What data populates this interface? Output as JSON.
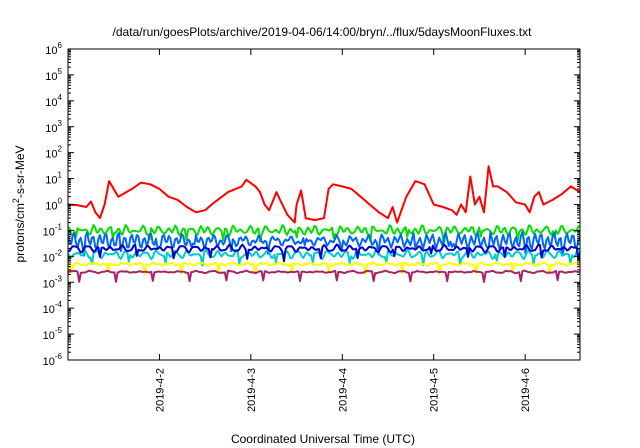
{
  "chart_data": {
    "type": "line",
    "title": "/data/run/goesPlots/archive/2019-04-06/14:00/bryn/../flux/5daysMoonFluxes.txt",
    "xlabel": "Coordinated Universal Time (UTC)",
    "ylabel": "protons/cm²-s-sr-MeV",
    "ylabel_parts": {
      "base": "protons/cm",
      "sup": "2",
      "rest": "-s-sr-MeV"
    },
    "yscale": "log",
    "ylim_exponents": [
      -6,
      6
    ],
    "y_ticks": [
      {
        "base": "10",
        "exp": "6"
      },
      {
        "base": "10",
        "exp": "5"
      },
      {
        "base": "10",
        "exp": "4"
      },
      {
        "base": "10",
        "exp": "3"
      },
      {
        "base": "10",
        "exp": "2"
      },
      {
        "base": "10",
        "exp": "1"
      },
      {
        "base": "10",
        "exp": "0"
      },
      {
        "base": "10",
        "exp": "-1"
      },
      {
        "base": "10",
        "exp": "-2"
      },
      {
        "base": "10",
        "exp": "-3"
      },
      {
        "base": "10",
        "exp": "-4"
      },
      {
        "base": "10",
        "exp": "-5"
      },
      {
        "base": "10",
        "exp": "-6"
      }
    ],
    "xlim_days": [
      0,
      5.6
    ],
    "x_ticks": [
      "2019-4-2",
      "2019-4-3",
      "2019-4-4",
      "2019-4-5",
      "2019-4-6"
    ],
    "x_tick_days": [
      1,
      2,
      3,
      4,
      5
    ],
    "grid": false,
    "series": [
      {
        "color": "#ff0000",
        "points": [
          [
            0.0,
            1.0
          ],
          [
            0.1,
            0.95
          ],
          [
            0.2,
            0.8
          ],
          [
            0.25,
            1.3
          ],
          [
            0.3,
            0.5
          ],
          [
            0.35,
            0.3
          ],
          [
            0.4,
            1.0
          ],
          [
            0.45,
            8.0
          ],
          [
            0.55,
            2.0
          ],
          [
            0.7,
            4.0
          ],
          [
            0.8,
            7.0
          ],
          [
            0.9,
            6.0
          ],
          [
            1.0,
            4.0
          ],
          [
            1.1,
            2.0
          ],
          [
            1.2,
            1.5
          ],
          [
            1.3,
            0.8
          ],
          [
            1.4,
            0.5
          ],
          [
            1.5,
            0.6
          ],
          [
            1.6,
            1.2
          ],
          [
            1.75,
            3.0
          ],
          [
            1.9,
            5.0
          ],
          [
            1.95,
            9.0
          ],
          [
            2.05,
            5.0
          ],
          [
            2.1,
            3.0
          ],
          [
            2.15,
            1.0
          ],
          [
            2.2,
            0.6
          ],
          [
            2.28,
            3.0
          ],
          [
            2.32,
            1.5
          ],
          [
            2.4,
            0.4
          ],
          [
            2.48,
            0.2
          ],
          [
            2.5,
            1.0
          ],
          [
            2.55,
            3.5
          ],
          [
            2.6,
            0.3
          ],
          [
            2.7,
            0.25
          ],
          [
            2.8,
            0.3
          ],
          [
            2.85,
            4.0
          ],
          [
            2.9,
            6.0
          ],
          [
            3.0,
            5.0
          ],
          [
            3.1,
            4.0
          ],
          [
            3.2,
            2.0
          ],
          [
            3.3,
            1.0
          ],
          [
            3.4,
            0.5
          ],
          [
            3.5,
            0.3
          ],
          [
            3.55,
            0.8
          ],
          [
            3.6,
            0.2
          ],
          [
            3.7,
            2.0
          ],
          [
            3.8,
            8.0
          ],
          [
            3.9,
            6.0
          ],
          [
            4.0,
            1.0
          ],
          [
            4.1,
            0.8
          ],
          [
            4.2,
            0.6
          ],
          [
            4.25,
            0.4
          ],
          [
            4.3,
            1.0
          ],
          [
            4.35,
            0.5
          ],
          [
            4.4,
            12.0
          ],
          [
            4.45,
            1.0
          ],
          [
            4.5,
            2.0
          ],
          [
            4.55,
            0.5
          ],
          [
            4.6,
            30.0
          ],
          [
            4.65,
            5.0
          ],
          [
            4.7,
            5.0
          ],
          [
            4.8,
            3.0
          ],
          [
            4.9,
            1.2
          ],
          [
            5.0,
            1.0
          ],
          [
            5.05,
            0.5
          ],
          [
            5.1,
            2.0
          ],
          [
            5.15,
            3.0
          ],
          [
            5.2,
            1.0
          ],
          [
            5.3,
            1.5
          ],
          [
            5.4,
            2.5
          ],
          [
            5.5,
            5.0
          ],
          [
            5.6,
            3.0
          ]
        ]
      },
      {
        "color": "#00e000",
        "base": 0.1,
        "amp": 0.35,
        "period": 0.09
      },
      {
        "color": "#0066ff",
        "base": 0.04,
        "amp": 0.55,
        "period": 0.07
      },
      {
        "color": "#00cccc",
        "base": 0.012,
        "amp": 0.3,
        "period": 0.11
      },
      {
        "color": "#0000cc",
        "base": 0.02,
        "amp": 0.25,
        "period": 0.13
      },
      {
        "color": "#ffff00",
        "base": 0.005,
        "amp": 0.2,
        "period": 0.17
      },
      {
        "color": "#aa2266",
        "base": 0.0025,
        "amp": 0.08,
        "period": 0.19
      }
    ]
  }
}
